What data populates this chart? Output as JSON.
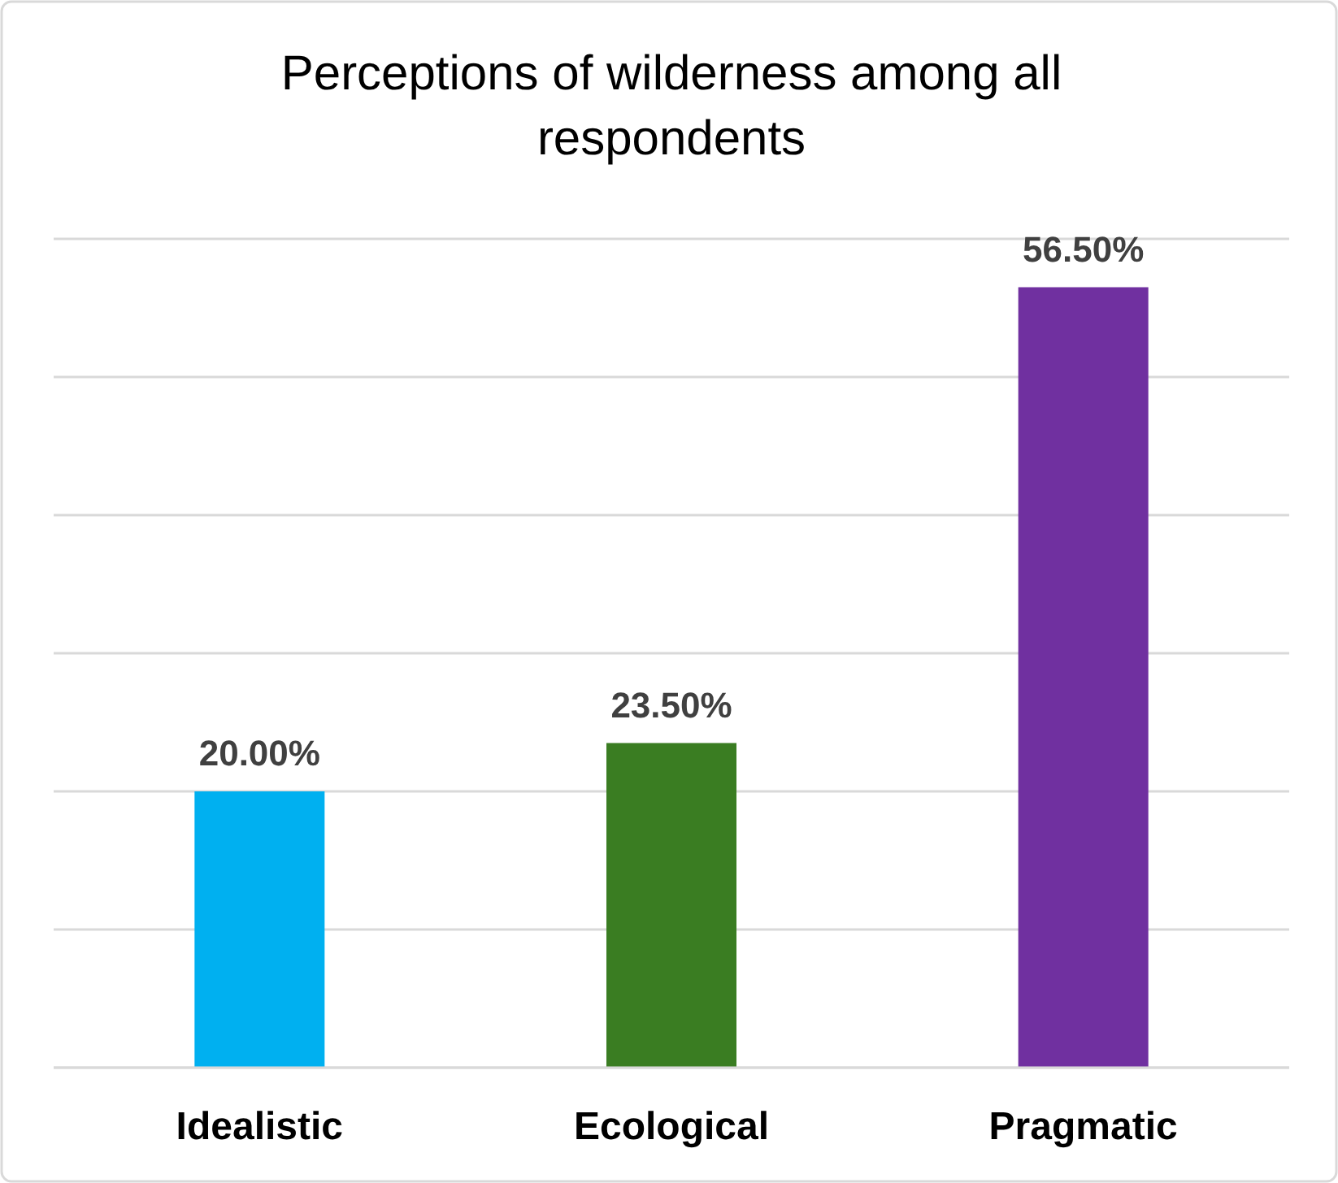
{
  "chart_data": {
    "type": "bar",
    "title": "Perceptions of wilderness among all respondents",
    "categories": [
      "Idealistic",
      "Ecological",
      "Pragmatic"
    ],
    "values": [
      20,
      23.5,
      56.5
    ],
    "colors": [
      "#00b0f0",
      "#3a7d22",
      "#7030a0"
    ],
    "value_labels": [
      "20.00%",
      "23.50%",
      "56.50%"
    ],
    "ylim": [
      0,
      60
    ],
    "yticks": [
      {
        "value": 0,
        "label": null
      },
      {
        "value": 10,
        "label": null
      },
      {
        "value": 20,
        "label": null
      },
      {
        "value": 30,
        "label": null
      },
      {
        "value": 40,
        "label": null
      },
      {
        "value": 50,
        "label": null
      },
      {
        "value": 60,
        "label": null
      }
    ],
    "grid": true,
    "tick_labels": "x"
  }
}
